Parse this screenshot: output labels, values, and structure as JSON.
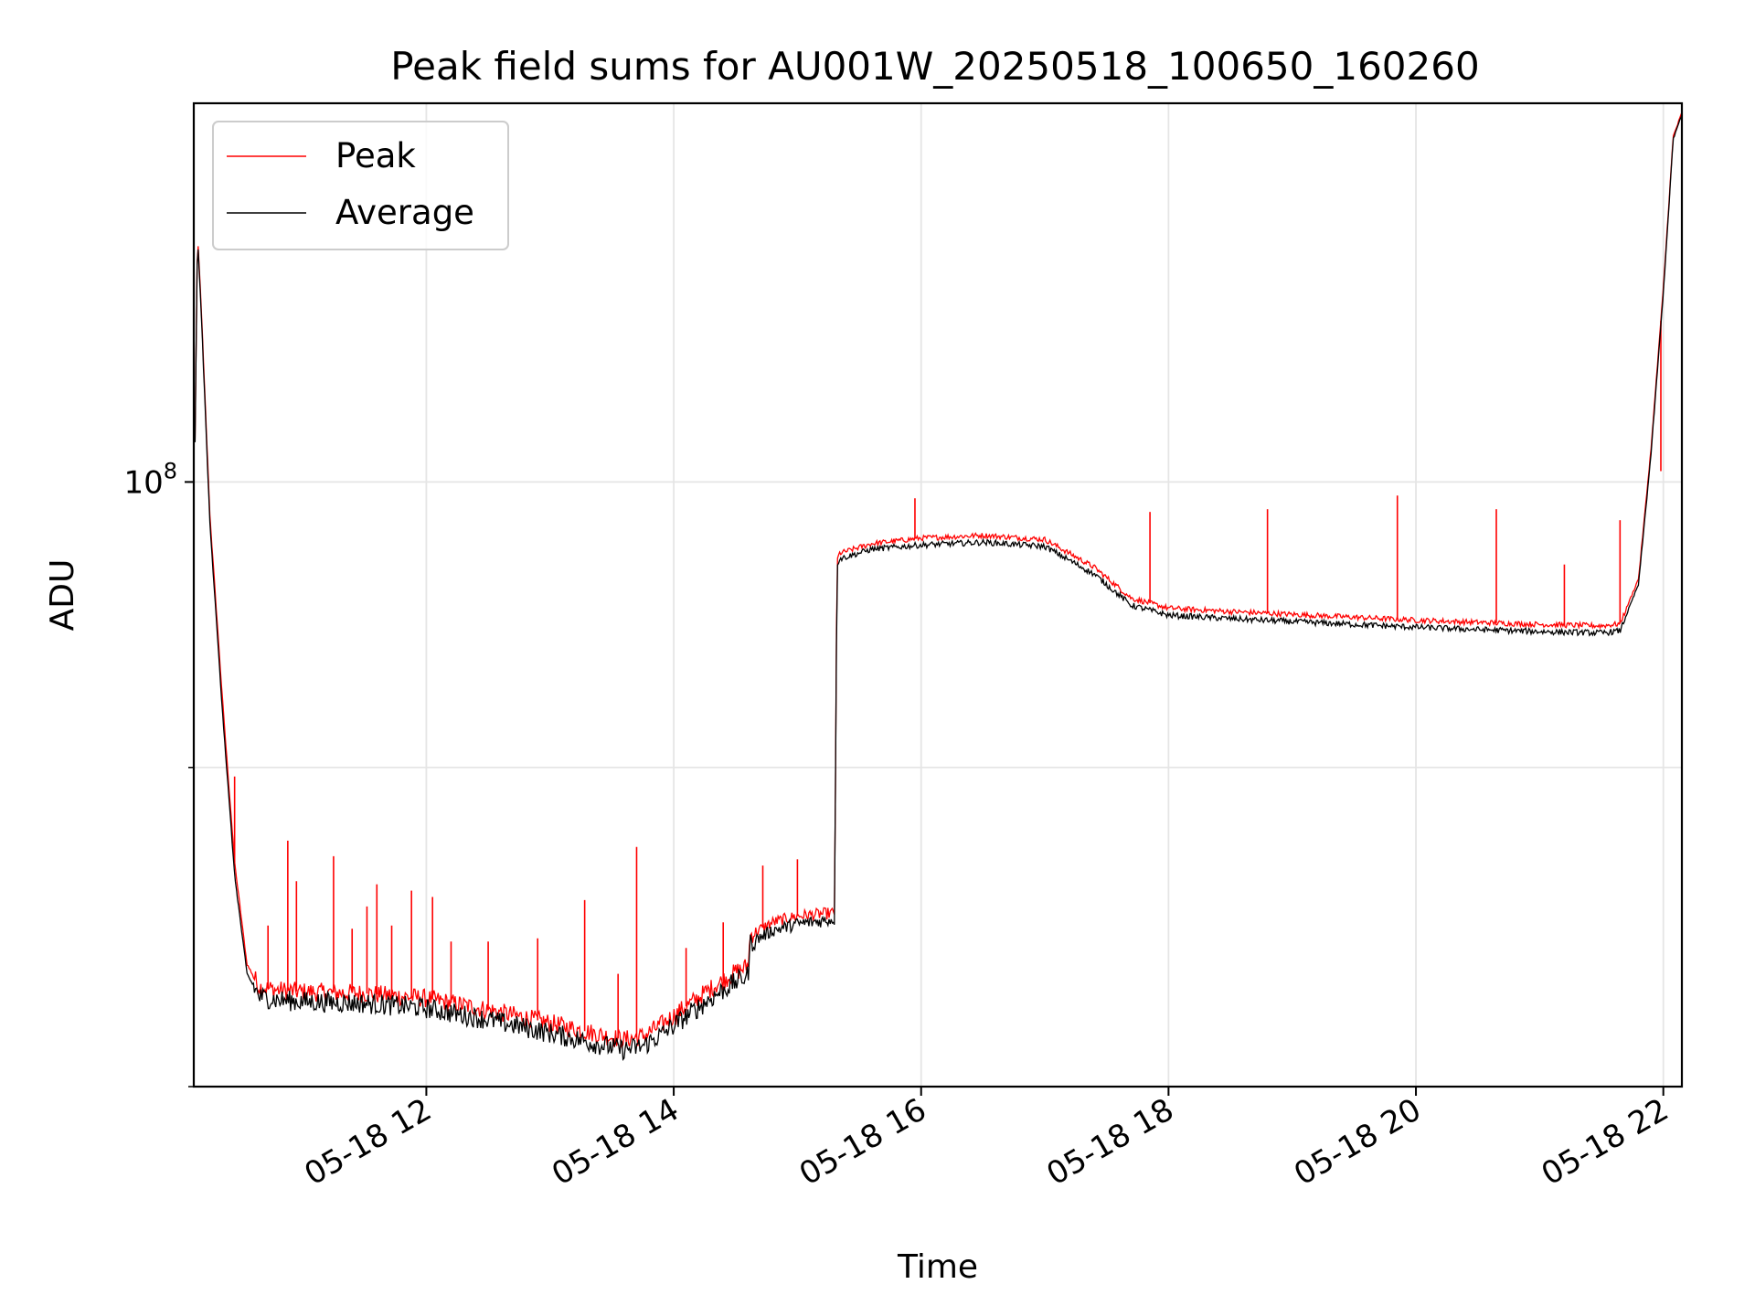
{
  "chart_data": {
    "type": "line",
    "title": "Peak field sums for AU001W_20250518_100650_160260",
    "xlabel": "Time",
    "ylabel": "ADU",
    "y_scale": "log",
    "x_range_hours": [
      10.12,
      22.15
    ],
    "ylim": [
      80000000.0,
      115000000.0
    ],
    "y_tick_labels": [
      {
        "value": 100000000,
        "base": "10",
        "exp": "8"
      }
    ],
    "x_tick_labels": [
      {
        "hour": 12,
        "label": "05-18 12"
      },
      {
        "hour": 14,
        "label": "05-18 14"
      },
      {
        "hour": 16,
        "label": "05-18 16"
      },
      {
        "hour": 18,
        "label": "05-18 18"
      },
      {
        "hour": 20,
        "label": "05-18 20"
      },
      {
        "hour": 22,
        "label": "05-18 22"
      }
    ],
    "grid": true,
    "legend_position": "upper-left",
    "legend": [
      {
        "name": "Peak",
        "color": "#ff0000"
      },
      {
        "name": "Average",
        "color": "#000000"
      }
    ],
    "series": [
      {
        "name": "Average",
        "color": "#000000",
        "x_hours": [
          10.13,
          10.15,
          10.18,
          10.25,
          10.35,
          10.45,
          10.55,
          10.65,
          10.8,
          11.0,
          11.5,
          12.0,
          12.5,
          13.0,
          13.4,
          13.6,
          13.75,
          13.9,
          14.1,
          14.3,
          14.5,
          14.6,
          14.62,
          14.66,
          14.8,
          15.0,
          15.3,
          15.32,
          15.34,
          15.6,
          16.0,
          16.5,
          17.0,
          17.4,
          17.7,
          18.0,
          18.5,
          19.0,
          19.5,
          20.0,
          20.5,
          21.0,
          21.5,
          21.65,
          21.8,
          21.9,
          22.0,
          22.08,
          22.15
        ],
        "y_adu": [
          101500000,
          109500000,
          106500000,
          98500000,
          92000000,
          86500000,
          83400000,
          82700000,
          82600000,
          82550000,
          82500000,
          82350000,
          82000000,
          81600000,
          81250000,
          81100000,
          81200000,
          81550000,
          82100000,
          82650000,
          83150000,
          83350000,
          84350000,
          84450000,
          84750000,
          84950000,
          85100000,
          97000000,
          97200000,
          97550000,
          97700000,
          97800000,
          97650000,
          96650000,
          95550000,
          95200000,
          95080000,
          94980000,
          94880000,
          94780000,
          94700000,
          94630000,
          94580000,
          94650000,
          96300000,
          101000000,
          107200000,
          113500000,
          114500000
        ]
      },
      {
        "name": "Peak",
        "color": "#ff0000",
        "x_hours": [
          10.13,
          10.15,
          10.18,
          10.25,
          10.35,
          10.45,
          10.55,
          10.65,
          10.8,
          11.0,
          11.5,
          12.0,
          12.5,
          13.0,
          13.4,
          13.6,
          13.75,
          13.9,
          14.1,
          14.3,
          14.5,
          14.6,
          14.62,
          14.66,
          14.8,
          15.0,
          15.3,
          15.32,
          15.34,
          15.6,
          16.0,
          16.5,
          17.0,
          17.4,
          17.7,
          18.0,
          18.5,
          19.0,
          19.5,
          20.0,
          20.5,
          21.0,
          21.5,
          21.65,
          21.8,
          21.9,
          22.0,
          22.08,
          22.15
        ],
        "y_adu": [
          101600000,
          109600000,
          106700000,
          98800000,
          92400000,
          86900000,
          83700000,
          83000000,
          82900000,
          82850000,
          82800000,
          82650000,
          82300000,
          81900000,
          81550000,
          81400000,
          81500000,
          81850000,
          82400000,
          82950000,
          83450000,
          83650000,
          84600000,
          84700000,
          85000000,
          85200000,
          85300000,
          97150000,
          97400000,
          97750000,
          97950000,
          98050000,
          97900000,
          96900000,
          95800000,
          95450000,
          95330000,
          95230000,
          95130000,
          95030000,
          94950000,
          94880000,
          94830000,
          94900000,
          96500000,
          101200000,
          107400000,
          113600000,
          114600000
        ]
      }
    ],
    "peak_spikes": [
      {
        "hour": 10.45,
        "y_adu": 89700000
      },
      {
        "hour": 10.72,
        "y_adu": 84900000
      },
      {
        "hour": 10.88,
        "y_adu": 87600000
      },
      {
        "hour": 10.95,
        "y_adu": 86300000
      },
      {
        "hour": 11.25,
        "y_adu": 87100000
      },
      {
        "hour": 11.4,
        "y_adu": 84800000
      },
      {
        "hour": 11.52,
        "y_adu": 85500000
      },
      {
        "hour": 11.6,
        "y_adu": 86200000
      },
      {
        "hour": 11.72,
        "y_adu": 84900000
      },
      {
        "hour": 11.88,
        "y_adu": 86000000
      },
      {
        "hour": 12.05,
        "y_adu": 85800000
      },
      {
        "hour": 12.2,
        "y_adu": 84400000
      },
      {
        "hour": 12.5,
        "y_adu": 84400000
      },
      {
        "hour": 12.9,
        "y_adu": 84500000
      },
      {
        "hour": 13.28,
        "y_adu": 85700000
      },
      {
        "hour": 13.55,
        "y_adu": 83400000
      },
      {
        "hour": 13.7,
        "y_adu": 87400000
      },
      {
        "hour": 14.1,
        "y_adu": 84200000
      },
      {
        "hour": 14.4,
        "y_adu": 85000000
      },
      {
        "hour": 14.72,
        "y_adu": 86800000
      },
      {
        "hour": 15.0,
        "y_adu": 87000000
      },
      {
        "hour": 15.95,
        "y_adu": 99400000
      },
      {
        "hour": 17.85,
        "y_adu": 98900000
      },
      {
        "hour": 18.8,
        "y_adu": 99000000
      },
      {
        "hour": 19.85,
        "y_adu": 99500000
      },
      {
        "hour": 20.65,
        "y_adu": 99000000
      },
      {
        "hour": 21.2,
        "y_adu": 97000000
      },
      {
        "hour": 21.65,
        "y_adu": 98600000
      },
      {
        "hour": 21.85,
        "y_adu": 98800000
      },
      {
        "hour": 21.98,
        "y_adu": 100400000
      }
    ]
  }
}
